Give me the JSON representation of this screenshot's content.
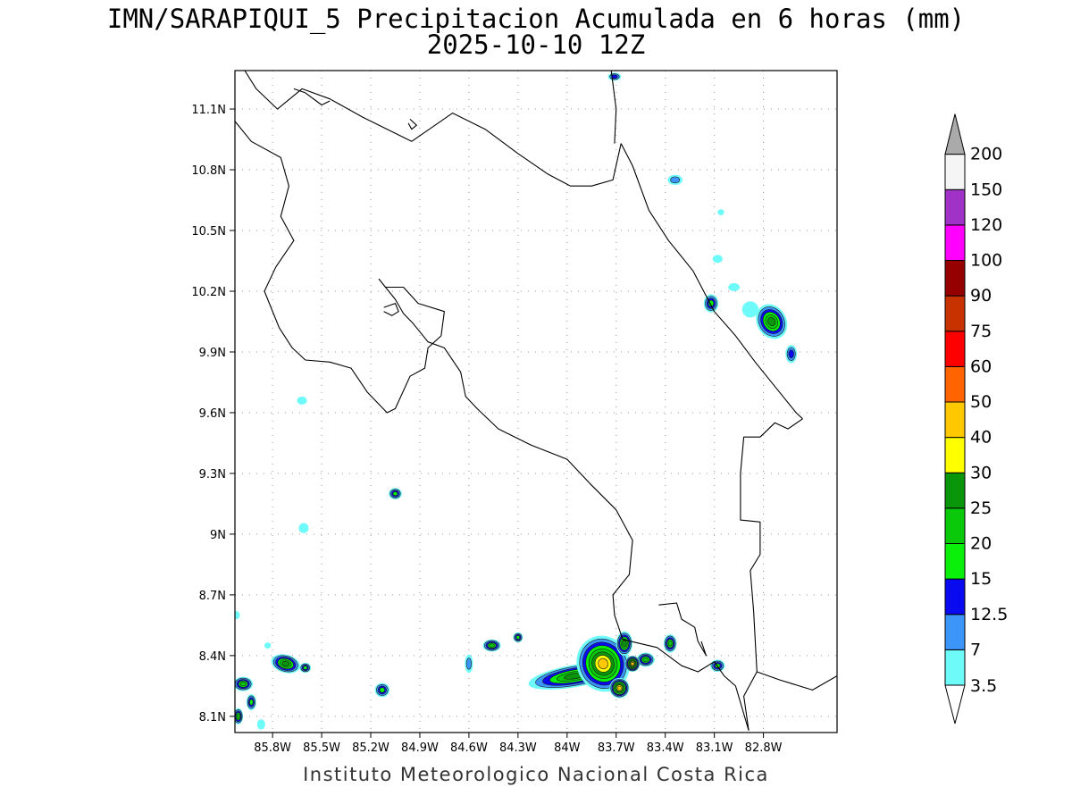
{
  "title": {
    "line1": "IMN/SARAPIQUI_5 Precipitacion Acumulada en 6 horas (mm)",
    "line2": "2025-10-10 12Z"
  },
  "credit": "Instituto Meteorologico Nacional Costa Rica",
  "map": {
    "lon_range": [
      -86.03,
      -82.35
    ],
    "lat_range": [
      8.02,
      11.29
    ],
    "lon_ticks": [
      {
        "value": -85.8,
        "label": "85.8W"
      },
      {
        "value": -85.5,
        "label": "85.5W"
      },
      {
        "value": -85.2,
        "label": "85.2W"
      },
      {
        "value": -84.9,
        "label": "84.9W"
      },
      {
        "value": -84.6,
        "label": "84.6W"
      },
      {
        "value": -84.3,
        "label": "84.3W"
      },
      {
        "value": -84.0,
        "label": "84W"
      },
      {
        "value": -83.7,
        "label": "83.7W"
      },
      {
        "value": -83.4,
        "label": "83.4W"
      },
      {
        "value": -83.1,
        "label": "83.1W"
      },
      {
        "value": -82.8,
        "label": "82.8W"
      }
    ],
    "lat_ticks": [
      {
        "value": 8.1,
        "label": "8.1N"
      },
      {
        "value": 8.4,
        "label": "8.4N"
      },
      {
        "value": 8.7,
        "label": "8.7N"
      },
      {
        "value": 9.0,
        "label": "9N"
      },
      {
        "value": 9.3,
        "label": "9.3N"
      },
      {
        "value": 9.6,
        "label": "9.6N"
      },
      {
        "value": 9.9,
        "label": "9.9N"
      },
      {
        "value": 10.2,
        "label": "10.2N"
      },
      {
        "value": 10.5,
        "label": "10.5N"
      },
      {
        "value": 10.8,
        "label": "10.8N"
      },
      {
        "value": 11.1,
        "label": "11.1N"
      }
    ],
    "grid": "dotted",
    "coastline_color": "#000000",
    "lines": {
      "nicaragua_border": [
        [
          -85.97,
          11.29
        ],
        [
          -85.9,
          11.2
        ],
        [
          -85.77,
          11.1
        ],
        [
          -85.62,
          11.2
        ],
        [
          -85.45,
          11.15
        ],
        [
          -85.25,
          11.06
        ],
        [
          -84.95,
          10.94
        ],
        [
          -84.7,
          11.08
        ],
        [
          -84.5,
          11.0
        ],
        [
          -84.3,
          10.88
        ],
        [
          -84.12,
          10.78
        ],
        [
          -83.98,
          10.72
        ],
        [
          -83.85,
          10.72
        ],
        [
          -83.72,
          10.75
        ],
        [
          -83.67,
          10.93
        ]
      ],
      "nicaragua_coast": [
        [
          -83.73,
          11.29
        ],
        [
          -83.7,
          11.1
        ],
        [
          -83.71,
          10.93
        ]
      ],
      "san_juan_bay": [
        [
          -85.67,
          11.2
        ],
        [
          -85.6,
          11.18
        ],
        [
          -85.5,
          11.12
        ],
        [
          -85.45,
          11.14
        ]
      ],
      "caribbean_coast": [
        [
          -83.67,
          10.93
        ],
        [
          -83.6,
          10.82
        ],
        [
          -83.5,
          10.6
        ],
        [
          -83.38,
          10.45
        ],
        [
          -83.23,
          10.3
        ],
        [
          -83.1,
          10.1
        ],
        [
          -82.97,
          9.98
        ],
        [
          -82.85,
          9.85
        ],
        [
          -82.72,
          9.72
        ],
        [
          -82.6,
          9.6
        ],
        [
          -82.56,
          9.57
        ]
      ],
      "pacific_coast": [
        [
          -86.03,
          11.04
        ],
        [
          -85.93,
          10.94
        ],
        [
          -85.75,
          10.86
        ],
        [
          -85.7,
          10.72
        ],
        [
          -85.75,
          10.57
        ],
        [
          -85.67,
          10.45
        ],
        [
          -85.78,
          10.32
        ],
        [
          -85.85,
          10.2
        ],
        [
          -85.76,
          10.02
        ],
        [
          -85.68,
          9.92
        ],
        [
          -85.6,
          9.86
        ],
        [
          -85.45,
          9.85
        ],
        [
          -85.32,
          9.82
        ],
        [
          -85.22,
          9.7
        ],
        [
          -85.1,
          9.6
        ],
        [
          -85.05,
          9.62
        ],
        [
          -84.96,
          9.78
        ],
        [
          -84.87,
          9.82
        ],
        [
          -84.85,
          9.92
        ],
        [
          -84.77,
          9.98
        ],
        [
          -84.75,
          10.1
        ],
        [
          -84.91,
          10.14
        ],
        [
          -85.0,
          10.22
        ],
        [
          -85.11,
          10.22
        ],
        [
          -85.15,
          10.26
        ],
        [
          -85.05,
          10.16
        ],
        [
          -85.0,
          10.09
        ],
        [
          -84.94,
          10.04
        ],
        [
          -84.85,
          9.95
        ],
        [
          -84.75,
          9.92
        ],
        [
          -84.65,
          9.8
        ],
        [
          -84.62,
          9.68
        ],
        [
          -84.55,
          9.62
        ],
        [
          -84.42,
          9.52
        ],
        [
          -84.22,
          9.44
        ],
        [
          -84.0,
          9.37
        ],
        [
          -83.86,
          9.25
        ],
        [
          -83.7,
          9.12
        ],
        [
          -83.6,
          8.97
        ],
        [
          -83.62,
          8.8
        ],
        [
          -83.72,
          8.7
        ],
        [
          -83.71,
          8.6
        ],
        [
          -83.66,
          8.48
        ],
        [
          -83.45,
          8.44
        ],
        [
          -83.3,
          8.35
        ],
        [
          -83.2,
          8.32
        ],
        [
          -83.1,
          8.37
        ],
        [
          -83.04,
          8.3
        ],
        [
          -82.97,
          8.25
        ],
        [
          -82.89,
          8.03
        ]
      ],
      "golfo_dulce": [
        [
          -83.44,
          8.65
        ],
        [
          -83.33,
          8.66
        ],
        [
          -83.3,
          8.58
        ],
        [
          -83.22,
          8.54
        ],
        [
          -83.2,
          8.47
        ],
        [
          -83.15,
          8.4
        ],
        [
          -83.18,
          8.47
        ]
      ],
      "panama_border": [
        [
          -82.56,
          9.57
        ],
        [
          -82.65,
          9.52
        ],
        [
          -82.73,
          9.55
        ],
        [
          -82.82,
          9.48
        ],
        [
          -82.92,
          9.48
        ],
        [
          -82.94,
          9.3
        ],
        [
          -82.94,
          9.07
        ],
        [
          -82.82,
          9.06
        ],
        [
          -82.82,
          8.9
        ],
        [
          -82.88,
          8.82
        ],
        [
          -82.86,
          8.62
        ],
        [
          -82.84,
          8.32
        ],
        [
          -82.92,
          8.2
        ],
        [
          -82.89,
          8.03
        ]
      ],
      "panama_coast": [
        [
          -82.84,
          8.32
        ],
        [
          -82.7,
          8.28
        ],
        [
          -82.5,
          8.23
        ],
        [
          -82.35,
          8.3
        ]
      ],
      "lake_island": [
        [
          -84.96,
          11.05
        ],
        [
          -84.92,
          11.02
        ],
        [
          -84.95,
          11.0
        ],
        [
          -84.97,
          11.03
        ]
      ],
      "chira_island": [
        [
          -85.12,
          10.12
        ],
        [
          -85.05,
          10.14
        ],
        [
          -85.03,
          10.1
        ],
        [
          -85.07,
          10.08
        ],
        [
          -85.12,
          10.1
        ]
      ]
    },
    "precip_cells": [
      {
        "lon": -83.71,
        "lat": 11.26,
        "rx": 0.04,
        "ry": 0.02,
        "level": 3,
        "angle": 0
      },
      {
        "lon": -83.34,
        "lat": 10.75,
        "rx": 0.045,
        "ry": 0.025,
        "level": 2,
        "angle": 0
      },
      {
        "lon": -83.06,
        "lat": 10.59,
        "rx": 0.02,
        "ry": 0.015,
        "level": 1,
        "angle": 0
      },
      {
        "lon": -83.08,
        "lat": 10.36,
        "rx": 0.03,
        "ry": 0.02,
        "level": 1,
        "angle": 0
      },
      {
        "lon": -82.98,
        "lat": 10.22,
        "rx": 0.035,
        "ry": 0.02,
        "level": 1,
        "angle": 0
      },
      {
        "lon": -83.12,
        "lat": 10.14,
        "rx": 0.045,
        "ry": 0.045,
        "level": 4,
        "angle": 0
      },
      {
        "lon": -82.75,
        "lat": 10.05,
        "rx": 0.09,
        "ry": 0.09,
        "level": 6,
        "angle": -30
      },
      {
        "lon": -82.88,
        "lat": 10.11,
        "rx": 0.05,
        "ry": 0.04,
        "level": 1,
        "angle": 0
      },
      {
        "lon": -82.63,
        "lat": 9.89,
        "rx": 0.035,
        "ry": 0.045,
        "level": 3,
        "angle": 0
      },
      {
        "lon": -85.62,
        "lat": 9.66,
        "rx": 0.03,
        "ry": 0.02,
        "level": 1,
        "angle": 0
      },
      {
        "lon": -85.05,
        "lat": 9.2,
        "rx": 0.04,
        "ry": 0.028,
        "level": 4,
        "angle": 0
      },
      {
        "lon": -85.61,
        "lat": 9.03,
        "rx": 0.03,
        "ry": 0.025,
        "level": 1,
        "angle": 0
      },
      {
        "lon": -86.02,
        "lat": 8.6,
        "rx": 0.02,
        "ry": 0.02,
        "level": 1,
        "angle": 0
      },
      {
        "lon": -85.83,
        "lat": 8.45,
        "rx": 0.02,
        "ry": 0.015,
        "level": 1,
        "angle": 0
      },
      {
        "lon": -85.72,
        "lat": 8.36,
        "rx": 0.09,
        "ry": 0.045,
        "level": 6,
        "angle": 15
      },
      {
        "lon": -85.6,
        "lat": 8.34,
        "rx": 0.035,
        "ry": 0.025,
        "level": 4,
        "angle": 0
      },
      {
        "lon": -85.98,
        "lat": 8.26,
        "rx": 0.06,
        "ry": 0.035,
        "level": 5,
        "angle": 0
      },
      {
        "lon": -85.93,
        "lat": 8.17,
        "rx": 0.03,
        "ry": 0.04,
        "level": 4,
        "angle": 0
      },
      {
        "lon": -86.01,
        "lat": 8.1,
        "rx": 0.03,
        "ry": 0.04,
        "level": 5,
        "angle": 0
      },
      {
        "lon": -85.87,
        "lat": 8.06,
        "rx": 0.025,
        "ry": 0.025,
        "level": 1,
        "angle": 0
      },
      {
        "lon": -85.13,
        "lat": 8.23,
        "rx": 0.045,
        "ry": 0.035,
        "level": 4,
        "angle": 0
      },
      {
        "lon": -84.6,
        "lat": 8.36,
        "rx": 0.025,
        "ry": 0.045,
        "level": 2,
        "angle": 0
      },
      {
        "lon": -84.46,
        "lat": 8.45,
        "rx": 0.055,
        "ry": 0.03,
        "level": 5,
        "angle": 0
      },
      {
        "lon": -84.3,
        "lat": 8.49,
        "rx": 0.03,
        "ry": 0.025,
        "level": 4,
        "angle": 0
      },
      {
        "lon": -83.37,
        "lat": 8.46,
        "rx": 0.04,
        "ry": 0.045,
        "level": 5,
        "angle": 0
      },
      {
        "lon": -83.08,
        "lat": 8.35,
        "rx": 0.045,
        "ry": 0.03,
        "level": 4,
        "angle": 0
      },
      {
        "lon": -83.95,
        "lat": 8.3,
        "rx": 0.29,
        "ry": 0.055,
        "level": 6,
        "angle": -10
      },
      {
        "lon": -83.78,
        "lat": 8.36,
        "rx": 0.16,
        "ry": 0.14,
        "level": 8,
        "angle": -25
      },
      {
        "lon": -83.65,
        "lat": 8.46,
        "rx": 0.05,
        "ry": 0.06,
        "level": 6,
        "angle": 0
      },
      {
        "lon": -83.68,
        "lat": 8.24,
        "rx": 0.06,
        "ry": 0.05,
        "level": 8,
        "angle": 0
      },
      {
        "lon": -83.52,
        "lat": 8.38,
        "rx": 0.055,
        "ry": 0.035,
        "level": 5,
        "angle": 0
      },
      {
        "lon": -83.6,
        "lat": 8.36,
        "rx": 0.045,
        "ry": 0.04,
        "level": 8,
        "angle": 0
      }
    ]
  },
  "colorbar": {
    "levels": [
      {
        "label": "3.5",
        "color": "#6ffafa"
      },
      {
        "label": "7",
        "color": "#3c96fa"
      },
      {
        "label": "12.5",
        "color": "#0a0af0"
      },
      {
        "label": "15",
        "color": "#0af00a"
      },
      {
        "label": "20",
        "color": "#0ac80a"
      },
      {
        "label": "25",
        "color": "#0a960a"
      },
      {
        "label": "30",
        "color": "#ffff00"
      },
      {
        "label": "40",
        "color": "#ffc800"
      },
      {
        "label": "50",
        "color": "#ff6400"
      },
      {
        "label": "60",
        "color": "#ff0000"
      },
      {
        "label": "75",
        "color": "#c83200"
      },
      {
        "label": "90",
        "color": "#960000"
      },
      {
        "label": "100",
        "color": "#ff00ff"
      },
      {
        "label": "120",
        "color": "#a032c8"
      },
      {
        "label": "150",
        "color": "#f5f5f5"
      },
      {
        "label": "200",
        "color": "#aaaaaa"
      }
    ],
    "under_color": "#ffffff",
    "over_color": "#aaaaaa"
  }
}
